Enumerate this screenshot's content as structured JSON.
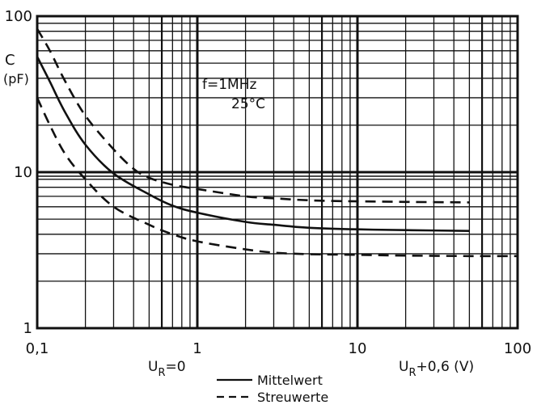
{
  "chart_data": {
    "type": "line",
    "x_scale": "log",
    "y_scale": "log",
    "xlim": [
      0.1,
      100
    ],
    "ylim": [
      1,
      100
    ],
    "grid": true,
    "ylabel_line1": "C",
    "ylabel_line2": "(pF)",
    "xlabel_left": "U",
    "xlabel_left_sub": "R",
    "xlabel_left_rest": "=0",
    "xlabel_right": "U",
    "xlabel_right_sub": "R",
    "xlabel_right_rest": "+0,6  (V)",
    "x_ticks": [
      {
        "value": 0.1,
        "label": "0,1"
      },
      {
        "value": 1,
        "label": "1"
      },
      {
        "value": 10,
        "label": "10"
      },
      {
        "value": 100,
        "label": "100"
      }
    ],
    "y_ticks": [
      {
        "value": 1,
        "label": "1"
      },
      {
        "value": 10,
        "label": "10"
      },
      {
        "value": 100,
        "label": "100"
      }
    ],
    "annotation_line1": "f=1MHz",
    "annotation_line2": "25°C",
    "legend": [
      {
        "label": "Mittelwert",
        "style": "solid"
      },
      {
        "label": "Streuwerte",
        "style": "dashed"
      }
    ],
    "series": [
      {
        "style": "solid",
        "points": [
          [
            0.1,
            55
          ],
          [
            0.12,
            38
          ],
          [
            0.15,
            24
          ],
          [
            0.2,
            15
          ],
          [
            0.3,
            9.8
          ],
          [
            0.5,
            7.2
          ],
          [
            0.7,
            6.1
          ],
          [
            1,
            5.5
          ],
          [
            2,
            4.8
          ],
          [
            3,
            4.6
          ],
          [
            5,
            4.4
          ],
          [
            10,
            4.3
          ],
          [
            20,
            4.25
          ],
          [
            50,
            4.2
          ]
        ]
      },
      {
        "style": "dashed",
        "points": [
          [
            0.1,
            83
          ],
          [
            0.12,
            60
          ],
          [
            0.15,
            38
          ],
          [
            0.2,
            23
          ],
          [
            0.3,
            14
          ],
          [
            0.4,
            10.5
          ],
          [
            0.5,
            9.2
          ],
          [
            0.7,
            8.3
          ],
          [
            1,
            7.8
          ],
          [
            2,
            7
          ],
          [
            3,
            6.8
          ],
          [
            5,
            6.6
          ],
          [
            10,
            6.5
          ],
          [
            20,
            6.45
          ],
          [
            50,
            6.4
          ]
        ]
      },
      {
        "style": "dashed",
        "points": [
          [
            0.1,
            30
          ],
          [
            0.12,
            20
          ],
          [
            0.15,
            13
          ],
          [
            0.2,
            9
          ],
          [
            0.3,
            6
          ],
          [
            0.5,
            4.6
          ],
          [
            0.7,
            4
          ],
          [
            1,
            3.6
          ],
          [
            2,
            3.2
          ],
          [
            3,
            3.05
          ],
          [
            5,
            2.98
          ],
          [
            10,
            2.95
          ],
          [
            20,
            2.92
          ],
          [
            50,
            2.9
          ],
          [
            100,
            2.9
          ]
        ]
      }
    ]
  },
  "colors": {
    "ink": "#111111",
    "background": "#ffffff"
  }
}
